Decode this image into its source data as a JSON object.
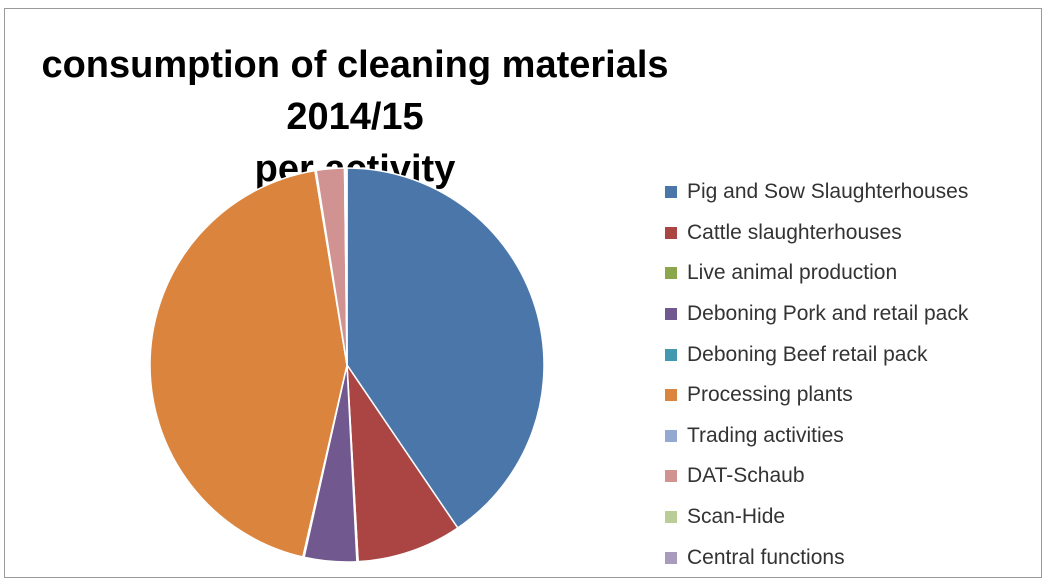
{
  "chart_data": {
    "type": "pie",
    "title_line1": "consumption of cleaning materials 2014/15",
    "title_line2": "per activity",
    "legend_position": "right",
    "slices": [
      {
        "label": "Pig and Sow Slaughterhouses",
        "value": 40.5,
        "color": "#4a76aa"
      },
      {
        "label": "Cattle slaughterhouses",
        "value": 8.6,
        "color": "#aa4543"
      },
      {
        "label": "Live animal production",
        "value": 0.1,
        "color": "#8aa84b"
      },
      {
        "label": "Deboning Pork and retail pack",
        "value": 4.3,
        "color": "#71588f"
      },
      {
        "label": "Deboning Beef retail pack",
        "value": 0.1,
        "color": "#4198af"
      },
      {
        "label": "Processing plants",
        "value": 43.8,
        "color": "#db843d"
      },
      {
        "label": "Trading activities",
        "value": 0.1,
        "color": "#93a9cf"
      },
      {
        "label": "DAT-Schaub",
        "value": 2.3,
        "color": "#d19392"
      },
      {
        "label": "Scan-Hide",
        "value": 0.1,
        "color": "#b9cd96"
      },
      {
        "label": "Central functions",
        "value": 0.1,
        "color": "#a99bbd"
      }
    ]
  }
}
